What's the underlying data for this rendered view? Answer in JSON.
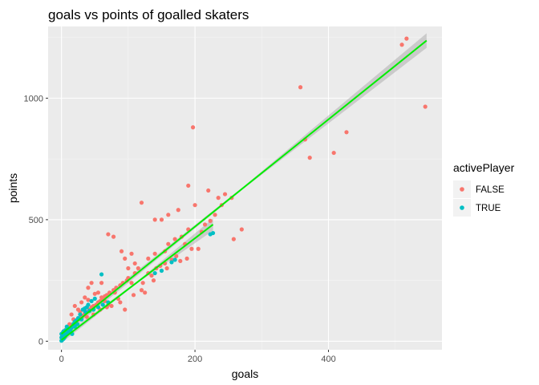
{
  "chart_data": {
    "type": "scatter",
    "title": "goals vs points of goalled skaters",
    "xlabel": "goals",
    "ylabel": "points",
    "xlim": [
      -20,
      570
    ],
    "ylim": [
      -35,
      1295
    ],
    "x_ticks": [
      0,
      200,
      400
    ],
    "x_tick_labels": [
      "0",
      "200",
      "400"
    ],
    "y_ticks": [
      0,
      500,
      1000
    ],
    "y_tick_labels": [
      "0",
      "500",
      "1000"
    ],
    "grid": true,
    "legend": {
      "title": "activePlayer",
      "position": "right"
    },
    "series": [
      {
        "name": "FALSE",
        "color": "#F8766D",
        "points": [
          [
            517,
            1245
          ],
          [
            510,
            1220
          ],
          [
            545,
            965
          ],
          [
            358,
            1045
          ],
          [
            197,
            880
          ],
          [
            427,
            860
          ],
          [
            408,
            775
          ],
          [
            372,
            755
          ],
          [
            365,
            830
          ],
          [
            190,
            640
          ],
          [
            220,
            620
          ],
          [
            235,
            590
          ],
          [
            245,
            605
          ],
          [
            255,
            590
          ],
          [
            270,
            460
          ],
          [
            258,
            420
          ],
          [
            223,
            495
          ],
          [
            215,
            480
          ],
          [
            200,
            560
          ],
          [
            175,
            540
          ],
          [
            160,
            520
          ],
          [
            150,
            500
          ],
          [
            140,
            500
          ],
          [
            120,
            570
          ],
          [
            210,
            450
          ],
          [
            190,
            460
          ],
          [
            180,
            430
          ],
          [
            170,
            420
          ],
          [
            160,
            400
          ],
          [
            155,
            370
          ],
          [
            140,
            360
          ],
          [
            130,
            340
          ],
          [
            115,
            300
          ],
          [
            110,
            280
          ],
          [
            100,
            260
          ],
          [
            98,
            250
          ],
          [
            92,
            240
          ],
          [
            88,
            230
          ],
          [
            82,
            220
          ],
          [
            78,
            210
          ],
          [
            72,
            200
          ],
          [
            68,
            190
          ],
          [
            65,
            185
          ],
          [
            62,
            175
          ],
          [
            58,
            165
          ],
          [
            55,
            160
          ],
          [
            52,
            150
          ],
          [
            48,
            145
          ],
          [
            45,
            140
          ],
          [
            42,
            130
          ],
          [
            38,
            120
          ],
          [
            35,
            115
          ],
          [
            32,
            105
          ],
          [
            30,
            100
          ],
          [
            28,
            95
          ],
          [
            25,
            90
          ],
          [
            22,
            80
          ],
          [
            20,
            75
          ],
          [
            18,
            70
          ],
          [
            15,
            60
          ],
          [
            12,
            50
          ],
          [
            10,
            40
          ],
          [
            8,
            35
          ],
          [
            6,
            28
          ],
          [
            5,
            22
          ],
          [
            4,
            18
          ],
          [
            3,
            14
          ],
          [
            2,
            10
          ],
          [
            1,
            6
          ],
          [
            40,
            220
          ],
          [
            45,
            240
          ],
          [
            55,
            200
          ],
          [
            60,
            180
          ],
          [
            65,
            165
          ],
          [
            70,
            150
          ],
          [
            75,
            145
          ],
          [
            80,
            200
          ],
          [
            85,
            175
          ],
          [
            95,
            130
          ],
          [
            105,
            240
          ],
          [
            120,
            210
          ],
          [
            125,
            200
          ],
          [
            130,
            280
          ],
          [
            135,
            270
          ],
          [
            142,
            300
          ],
          [
            148,
            310
          ],
          [
            155,
            320
          ],
          [
            165,
            335
          ],
          [
            172,
            350
          ],
          [
            185,
            400
          ],
          [
            195,
            380
          ],
          [
            205,
            380
          ],
          [
            230,
            520
          ],
          [
            240,
            560
          ],
          [
            105,
            360
          ],
          [
            110,
            320
          ],
          [
            78,
            430
          ],
          [
            70,
            440
          ],
          [
            90,
            370
          ],
          [
            95,
            340
          ],
          [
            100,
            300
          ],
          [
            60,
            240
          ],
          [
            50,
            195
          ],
          [
            35,
            180
          ],
          [
            25,
            130
          ],
          [
            15,
            110
          ],
          [
            20,
            145
          ],
          [
            30,
            160
          ],
          [
            40,
            170
          ],
          [
            18,
            90
          ],
          [
            12,
            70
          ],
          [
            28,
            120
          ],
          [
            38,
            100
          ],
          [
            48,
            110
          ],
          [
            58,
            130
          ],
          [
            68,
            140
          ],
          [
            88,
            160
          ],
          [
            108,
            190
          ],
          [
            122,
            240
          ],
          [
            138,
            250
          ],
          [
            158,
            300
          ],
          [
            178,
            330
          ],
          [
            188,
            340
          ]
        ]
      },
      {
        "name": "TRUE",
        "color": "#00BFC4",
        "points": [
          [
            227,
            445
          ],
          [
            223,
            440
          ],
          [
            170,
            335
          ],
          [
            165,
            325
          ],
          [
            150,
            290
          ],
          [
            140,
            280
          ],
          [
            60,
            275
          ],
          [
            50,
            175
          ],
          [
            45,
            165
          ],
          [
            40,
            150
          ],
          [
            38,
            140
          ],
          [
            35,
            135
          ],
          [
            32,
            130
          ],
          [
            28,
            110
          ],
          [
            25,
            95
          ],
          [
            22,
            85
          ],
          [
            20,
            80
          ],
          [
            18,
            70
          ],
          [
            15,
            55
          ],
          [
            12,
            45
          ],
          [
            10,
            35
          ],
          [
            8,
            28
          ],
          [
            6,
            22
          ],
          [
            5,
            18
          ],
          [
            4,
            14
          ],
          [
            3,
            10
          ],
          [
            2,
            8
          ],
          [
            1,
            5
          ],
          [
            0,
            2
          ],
          [
            0,
            15
          ],
          [
            0,
            30
          ],
          [
            1,
            20
          ],
          [
            2,
            35
          ],
          [
            3,
            40
          ],
          [
            4,
            30
          ],
          [
            6,
            45
          ],
          [
            8,
            60
          ],
          [
            10,
            50
          ],
          [
            14,
            40
          ],
          [
            16,
            30
          ],
          [
            20,
            60
          ],
          [
            24,
            70
          ],
          [
            30,
            90
          ],
          [
            36,
            120
          ],
          [
            42,
            125
          ],
          [
            48,
            130
          ],
          [
            55,
            140
          ],
          [
            62,
            150
          ],
          [
            70,
            160
          ]
        ]
      }
    ],
    "fits": [
      {
        "series": "FALSE",
        "from": [
          0,
          30
        ],
        "to": [
          547,
          1237
        ],
        "band_halfwidth_at_end": 30
      },
      {
        "series": "TRUE",
        "from": [
          0,
          5
        ],
        "to": [
          227,
          480
        ],
        "band_halfwidth_at_end": 25
      }
    ]
  }
}
